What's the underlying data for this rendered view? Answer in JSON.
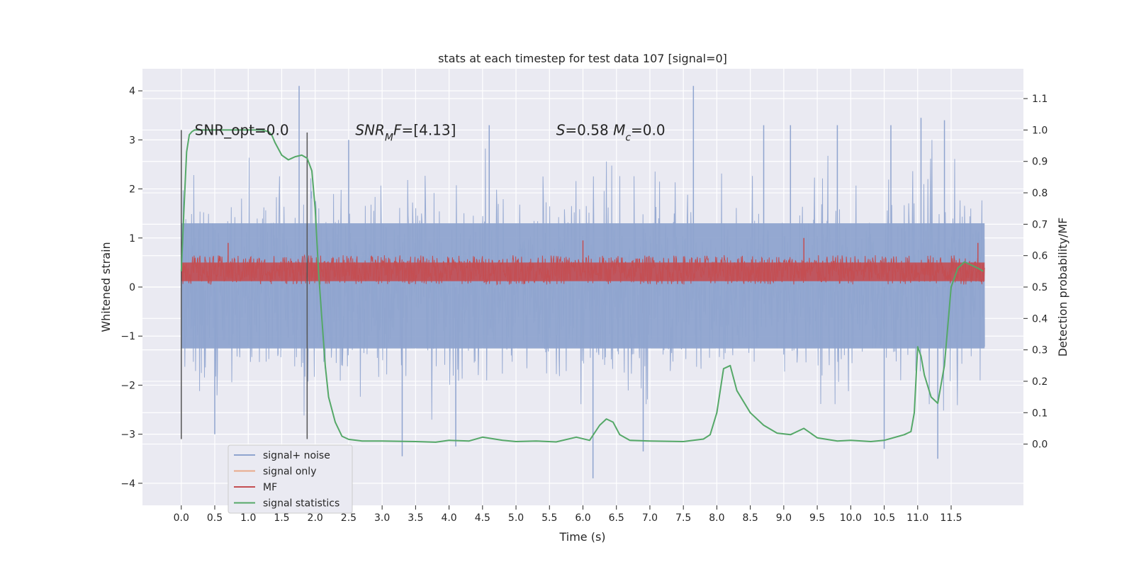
{
  "chart_data": {
    "type": "line",
    "title": "stats at each timestep for test data 107 [signal=0]",
    "xlabel": "Time (s)",
    "ylabel": "Whitened strain",
    "y2label": "Detection probability/MF",
    "xlim": [
      -0.58,
      12.58
    ],
    "ylim": [
      -4.45,
      4.45
    ],
    "y2lim": [
      -0.195,
      1.195
    ],
    "xticks": [
      0.0,
      0.5,
      1.0,
      1.5,
      2.0,
      2.5,
      3.0,
      3.5,
      4.0,
      4.5,
      5.0,
      5.5,
      6.0,
      6.5,
      7.0,
      7.5,
      8.0,
      8.5,
      9.0,
      9.5,
      10.0,
      10.5,
      11.0,
      11.5
    ],
    "xtick_labels": [
      "0.0",
      "0.5",
      "1.0",
      "1.5",
      "2.0",
      "2.5",
      "3.0",
      "3.5",
      "4.0",
      "4.5",
      "5.0",
      "5.5",
      "6.0",
      "6.5",
      "7.0",
      "7.5",
      "8.0",
      "8.5",
      "9.0",
      "9.5",
      "10.0",
      "10.5",
      "11.0",
      "11.5"
    ],
    "yticks": [
      -4,
      -3,
      -2,
      -1,
      0,
      1,
      2,
      3,
      4
    ],
    "ytick_labels": [
      "−4",
      "−3",
      "−2",
      "−1",
      "0",
      "1",
      "2",
      "3",
      "4"
    ],
    "y2ticks": [
      0.0,
      0.1,
      0.2,
      0.3,
      0.4,
      0.5,
      0.6,
      0.7,
      0.8,
      0.9,
      1.0,
      1.1
    ],
    "y2tick_labels": [
      "0.0",
      "0.1",
      "0.2",
      "0.3",
      "0.4",
      "0.5",
      "0.6",
      "0.7",
      "0.8",
      "0.9",
      "1.0",
      "1.1"
    ],
    "grid": true,
    "legend_position": "lower-left",
    "annotations": [
      {
        "text_parts": [
          {
            "t": "SNR_opt=0.0",
            "style": "normal"
          }
        ],
        "x": 0.2,
        "y": 3.2
      },
      {
        "text_parts": [
          {
            "t": "SNR",
            "style": "italic"
          },
          {
            "t": "M",
            "style": "italic-sub"
          },
          {
            "t": "F",
            "style": "italic"
          },
          {
            "t": "=[4.13]",
            "style": "normal"
          }
        ],
        "x": 2.6,
        "y": 3.2
      },
      {
        "text_parts": [
          {
            "t": "S",
            "style": "italic"
          },
          {
            "t": "=0.58   ",
            "style": "normal"
          },
          {
            "t": "M",
            "style": "italic"
          },
          {
            "t": "c",
            "style": "italic-sub"
          },
          {
            "t": "=0.0",
            "style": "normal"
          }
        ],
        "x": 5.6,
        "y": 3.2
      }
    ],
    "vertical_lines": [
      {
        "x": 0.0,
        "ymin": -3.1,
        "ymax": 3.2
      },
      {
        "x": 1.88,
        "ymin": -3.1,
        "ymax": 3.15
      }
    ],
    "series": [
      {
        "name": "signal+ noise",
        "color": "#8fa4cf",
        "axis": "left",
        "t_range": [
          0.0,
          12.0
        ],
        "band_quantiles": [
          -1.25,
          1.3
        ],
        "sample_spikes": [
          {
            "x": 1.76,
            "y": 4.1
          },
          {
            "x": 7.65,
            "y": 4.1
          },
          {
            "x": 6.15,
            "y": -3.9
          },
          {
            "x": 11.3,
            "y": -3.5
          },
          {
            "x": 3.3,
            "y": -3.45
          },
          {
            "x": 11.05,
            "y": 3.45
          },
          {
            "x": 11.4,
            "y": 3.4
          },
          {
            "x": 10.6,
            "y": 3.3
          },
          {
            "x": 8.7,
            "y": 3.3
          },
          {
            "x": 10.5,
            "y": -3.3
          },
          {
            "x": 6.9,
            "y": -3.35
          },
          {
            "x": 4.1,
            "y": -3.25
          },
          {
            "x": 0.5,
            "y": -3.0
          },
          {
            "x": 2.5,
            "y": 3.0
          },
          {
            "x": 4.6,
            "y": 3.3
          },
          {
            "x": 9.1,
            "y": 3.3
          },
          {
            "x": 9.8,
            "y": 3.3
          }
        ]
      },
      {
        "name": "signal only",
        "color": "#e8a98a",
        "axis": "left",
        "values_note": "flat at zero (hidden under other series)"
      },
      {
        "name": "MF",
        "color": "#c44e52",
        "axis": "left",
        "t_range": [
          0.0,
          12.0
        ],
        "band": [
          0.05,
          0.65
        ],
        "sample_spikes": [
          {
            "x": 0.7,
            "y": 0.9
          },
          {
            "x": 9.3,
            "y": 1.0
          },
          {
            "x": 6.0,
            "y": 0.95
          },
          {
            "x": 11.9,
            "y": 0.9
          }
        ]
      },
      {
        "name": "signal statistics",
        "color": "#55a868",
        "axis": "right",
        "x": [
          0.0,
          0.04,
          0.08,
          0.12,
          0.16,
          0.2,
          0.3,
          0.5,
          0.8,
          1.0,
          1.2,
          1.3,
          1.35,
          1.4,
          1.5,
          1.6,
          1.65,
          1.7,
          1.8,
          1.88,
          1.95,
          2.0,
          2.05,
          2.1,
          2.15,
          2.2,
          2.3,
          2.4,
          2.5,
          2.7,
          3.0,
          3.5,
          3.8,
          4.0,
          4.3,
          4.5,
          4.8,
          5.0,
          5.3,
          5.6,
          5.9,
          6.1,
          6.25,
          6.35,
          6.45,
          6.55,
          6.7,
          7.0,
          7.5,
          7.8,
          7.9,
          8.0,
          8.1,
          8.2,
          8.3,
          8.5,
          8.7,
          8.9,
          9.1,
          9.3,
          9.5,
          9.8,
          10.0,
          10.3,
          10.5,
          10.8,
          10.9,
          10.95,
          11.0,
          11.05,
          11.1,
          11.2,
          11.3,
          11.4,
          11.5,
          11.6,
          11.7,
          11.8,
          11.9,
          11.98
        ],
        "values": [
          0.55,
          0.75,
          0.93,
          0.985,
          0.995,
          1.0,
          1.0,
          1.0,
          1.0,
          1.0,
          1.0,
          0.995,
          0.985,
          0.96,
          0.92,
          0.905,
          0.91,
          0.915,
          0.92,
          0.91,
          0.87,
          0.75,
          0.55,
          0.4,
          0.25,
          0.15,
          0.07,
          0.025,
          0.015,
          0.01,
          0.01,
          0.008,
          0.006,
          0.012,
          0.01,
          0.022,
          0.012,
          0.008,
          0.01,
          0.007,
          0.022,
          0.012,
          0.06,
          0.08,
          0.07,
          0.03,
          0.012,
          0.01,
          0.008,
          0.016,
          0.03,
          0.1,
          0.24,
          0.25,
          0.17,
          0.1,
          0.06,
          0.035,
          0.03,
          0.05,
          0.02,
          0.01,
          0.012,
          0.008,
          0.012,
          0.03,
          0.04,
          0.1,
          0.31,
          0.28,
          0.22,
          0.15,
          0.13,
          0.25,
          0.5,
          0.56,
          0.58,
          0.57,
          0.56,
          0.55
        ]
      }
    ]
  }
}
